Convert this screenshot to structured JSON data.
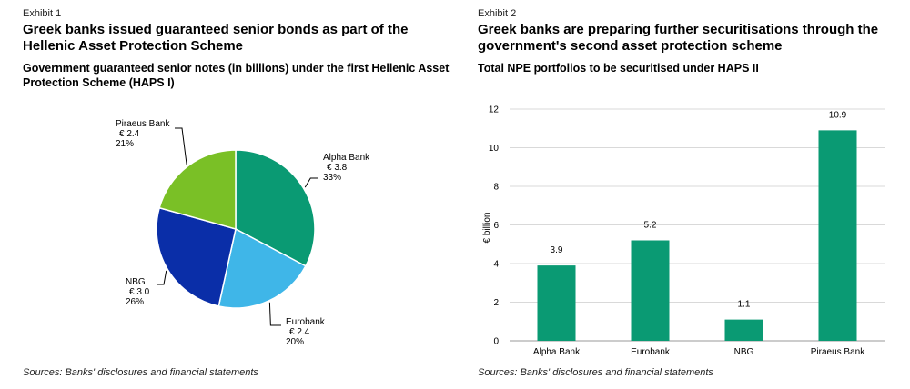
{
  "chart_data": [
    {
      "type": "pie",
      "exhibit": "Exhibit 1",
      "title": "Greek banks issued guaranteed senior bonds as part of the Hellenic Asset Protection Scheme",
      "subtitle": "Government guaranteed senior notes (in billions) under the first Hellenic Asset Protection Scheme (HAPS I)",
      "source": "Sources: Banks' disclosures and financial statements",
      "slices": [
        {
          "name": "Alpha Bank",
          "value_label": "€ 3.8",
          "value": 3.8,
          "percent": "33%",
          "color": "#0a9a73"
        },
        {
          "name": "Eurobank",
          "value_label": "€ 2.4",
          "value": 2.4,
          "percent": "20%",
          "color": "#3fb6e8"
        },
        {
          "name": "NBG",
          "value_label": "€ 3.0",
          "value": 3.0,
          "percent": "26%",
          "color": "#0a2ea8"
        },
        {
          "name": "Piraeus Bank",
          "value_label": "€ 2.4",
          "value": 2.4,
          "percent": "21%",
          "color": "#7ac026"
        }
      ]
    },
    {
      "type": "bar",
      "exhibit": "Exhibit 2",
      "title": "Greek banks are preparing further securitisations through the government's second asset protection scheme",
      "subtitle": "Total NPE portfolios to be securitised under HAPS II",
      "source": "Sources: Banks' disclosures and financial statements",
      "categories": [
        "Alpha Bank",
        "Eurobank",
        "NBG",
        "Piraeus Bank"
      ],
      "values": [
        3.9,
        5.2,
        1.1,
        10.9
      ],
      "value_labels": [
        "3.9",
        "5.2",
        "1.1",
        "10.9"
      ],
      "ylabel": "€ billion",
      "ylim": [
        0,
        12
      ],
      "yticks": [
        "0",
        "2",
        "4",
        "6",
        "8",
        "10",
        "12"
      ],
      "grid": true,
      "bar_color": "#0a9a73"
    }
  ]
}
